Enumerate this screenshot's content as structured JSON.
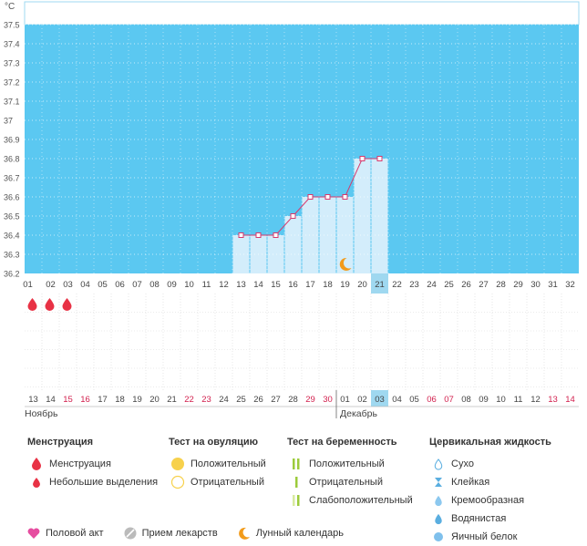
{
  "chart_data": {
    "type": "line",
    "unit_label": "°C",
    "y_ticks": [
      "37.5",
      "37.4",
      "37.3",
      "37.2",
      "37.1",
      "37",
      "36.9",
      "36.8",
      "36.7",
      "36.6",
      "36.5",
      "36.4",
      "36.3",
      "36.2"
    ],
    "ylim": [
      36.2,
      37.5
    ],
    "cycle_days": [
      "01",
      "02",
      "03",
      "04",
      "05",
      "06",
      "07",
      "08",
      "09",
      "10",
      "11",
      "12",
      "13",
      "14",
      "15",
      "16",
      "17",
      "18",
      "19",
      "20",
      "21",
      "22",
      "23",
      "24",
      "25",
      "26",
      "27",
      "28",
      "29",
      "30",
      "31",
      "32"
    ],
    "today_cycle_day": "21",
    "series": [
      {
        "values": [
          null,
          null,
          null,
          null,
          null,
          null,
          null,
          null,
          null,
          null,
          null,
          null,
          36.4,
          36.4,
          36.4,
          36.5,
          36.6,
          36.6,
          36.6,
          36.8,
          36.8,
          null,
          null,
          null,
          null,
          null,
          null,
          null,
          null,
          null,
          null,
          null
        ]
      }
    ],
    "menstruation_days": [
      "01",
      "02",
      "03"
    ],
    "moon_day": "19",
    "dates": [
      "13",
      "14",
      "15",
      "16",
      "17",
      "18",
      "19",
      "20",
      "21",
      "22",
      "23",
      "24",
      "25",
      "26",
      "27",
      "28",
      "29",
      "30",
      "01",
      "02",
      "03",
      "04",
      "05",
      "06",
      "07",
      "08",
      "09",
      "10",
      "11",
      "12",
      "13",
      "14"
    ],
    "weekend_dates_index": [
      2,
      3,
      9,
      10,
      16,
      17,
      23,
      24,
      30,
      31
    ],
    "today_date": "03",
    "month_labels": [
      {
        "label": "Ноябрь",
        "start_index": 0
      },
      {
        "label": "Декабрь",
        "start_index": 18
      }
    ],
    "colors": {
      "plot_bg": "#5bc8f1",
      "bar_fill": "#d3edfb",
      "line": "#d63a6d",
      "weekend_text": "#d21f4d",
      "today_bg": "#9fd8f0",
      "drop": "#e83245",
      "moon": "#f29b1a"
    }
  },
  "legend": {
    "menstruation": {
      "title": "Менструация",
      "items": [
        "Менструация",
        "Небольшие выделения"
      ]
    },
    "ovulation": {
      "title": "Тест на овуляцию",
      "items": [
        "Положительный",
        "Отрицательный"
      ]
    },
    "pregnancy": {
      "title": "Тест на беременность",
      "items": [
        "Положительный",
        "Отрицательный",
        "Слабоположительный"
      ]
    },
    "cervical": {
      "title": "Цервикальная жидкость",
      "items": [
        "Сухо",
        "Клейкая",
        "Кремообразная",
        "Водянистая",
        "Яичный белок"
      ]
    },
    "bottom": [
      "Половой акт",
      "Прием лекарств",
      "Лунный календарь"
    ]
  }
}
